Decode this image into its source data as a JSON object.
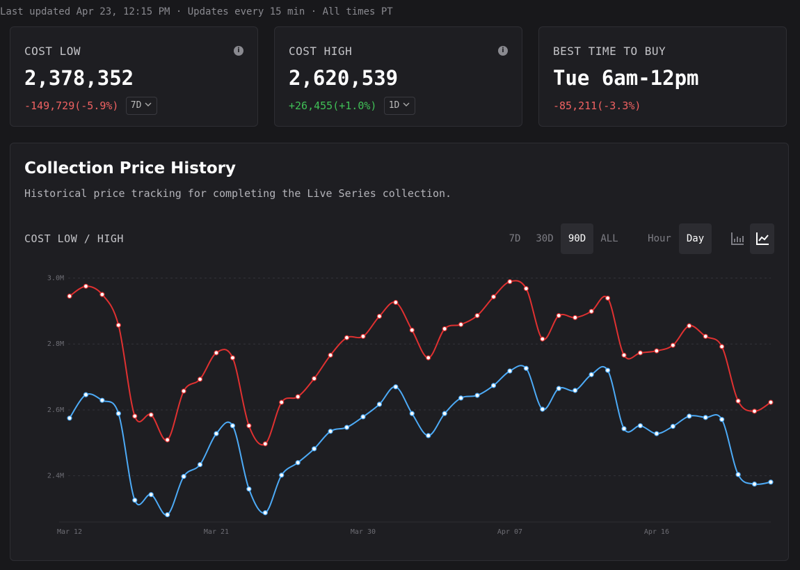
{
  "status_line": "Last updated Apr 23, 12:15 PM · Updates every 15 min · All times PT",
  "cards": [
    {
      "label": "COST LOW",
      "value": "2,378,352",
      "change": "-149,729(-5.9%)",
      "trend": "down",
      "period": "7D",
      "info": true
    },
    {
      "label": "COST HIGH",
      "value": "2,620,539",
      "change": "+26,455(+1.0%)",
      "trend": "up",
      "period": "1D",
      "info": true
    },
    {
      "label": "BEST TIME TO BUY",
      "value": "Tue 6am-12pm",
      "change": "-85,211(-3.3%)",
      "trend": "down",
      "info": false
    }
  ],
  "panel": {
    "title": "Collection Price History",
    "subtitle": "Historical price tracking for completing the Live Series collection.",
    "chart_label": "COST LOW / HIGH",
    "ranges": [
      "7D",
      "30D",
      "90D",
      "ALL"
    ],
    "selected_range": 2,
    "intervals": [
      "Hour",
      "Day"
    ],
    "selected_interval": 1
  },
  "chart_data": {
    "type": "line",
    "categories": [
      "Mar 12",
      null,
      null,
      null,
      null,
      null,
      null,
      null,
      null,
      "Mar 21",
      null,
      null,
      null,
      null,
      null,
      null,
      null,
      null,
      "Mar 30",
      null,
      null,
      null,
      null,
      null,
      null,
      null,
      null,
      "Apr 07",
      null,
      null,
      null,
      null,
      null,
      null,
      null,
      null,
      "Apr 16",
      null,
      null,
      null,
      null,
      null,
      null,
      null
    ],
    "series": [
      {
        "color": "#e03131",
        "values": [
          2945000,
          2975000,
          2950000,
          2857000,
          2581000,
          2585000,
          2509000,
          2657000,
          2693000,
          2773000,
          2758000,
          2552000,
          2497000,
          2623000,
          2640000,
          2695000,
          2766000,
          2819000,
          2823000,
          2884000,
          2926000,
          2842000,
          2758000,
          2846000,
          2859000,
          2886000,
          2943000,
          2989000,
          2968000,
          2815000,
          2886000,
          2880000,
          2899000,
          2939000,
          2766000,
          2773000,
          2779000,
          2796000,
          2855000,
          2823000,
          2792000,
          2627000,
          2596000,
          2623000
        ]
      },
      {
        "color": "#4dabf7",
        "values": [
          2575000,
          2646000,
          2629000,
          2589000,
          2326000,
          2343000,
          2282000,
          2398000,
          2434000,
          2528000,
          2552000,
          2360000,
          2288000,
          2402000,
          2440000,
          2482000,
          2535000,
          2547000,
          2579000,
          2617000,
          2670000,
          2589000,
          2522000,
          2589000,
          2636000,
          2644000,
          2674000,
          2718000,
          2726000,
          2602000,
          2665000,
          2659000,
          2707000,
          2720000,
          2543000,
          2552000,
          2528000,
          2550000,
          2581000,
          2577000,
          2571000,
          2404000,
          2375000,
          2381000
        ]
      }
    ],
    "ylim": [
      2260000,
      3020000
    ],
    "yticks": [
      {
        "value": 2400000,
        "label": "2.4M"
      },
      {
        "value": 2600000,
        "label": "2.6M"
      },
      {
        "value": 2800000,
        "label": "2.8M"
      },
      {
        "value": 3000000,
        "label": "3.0M"
      }
    ],
    "grid": true
  }
}
